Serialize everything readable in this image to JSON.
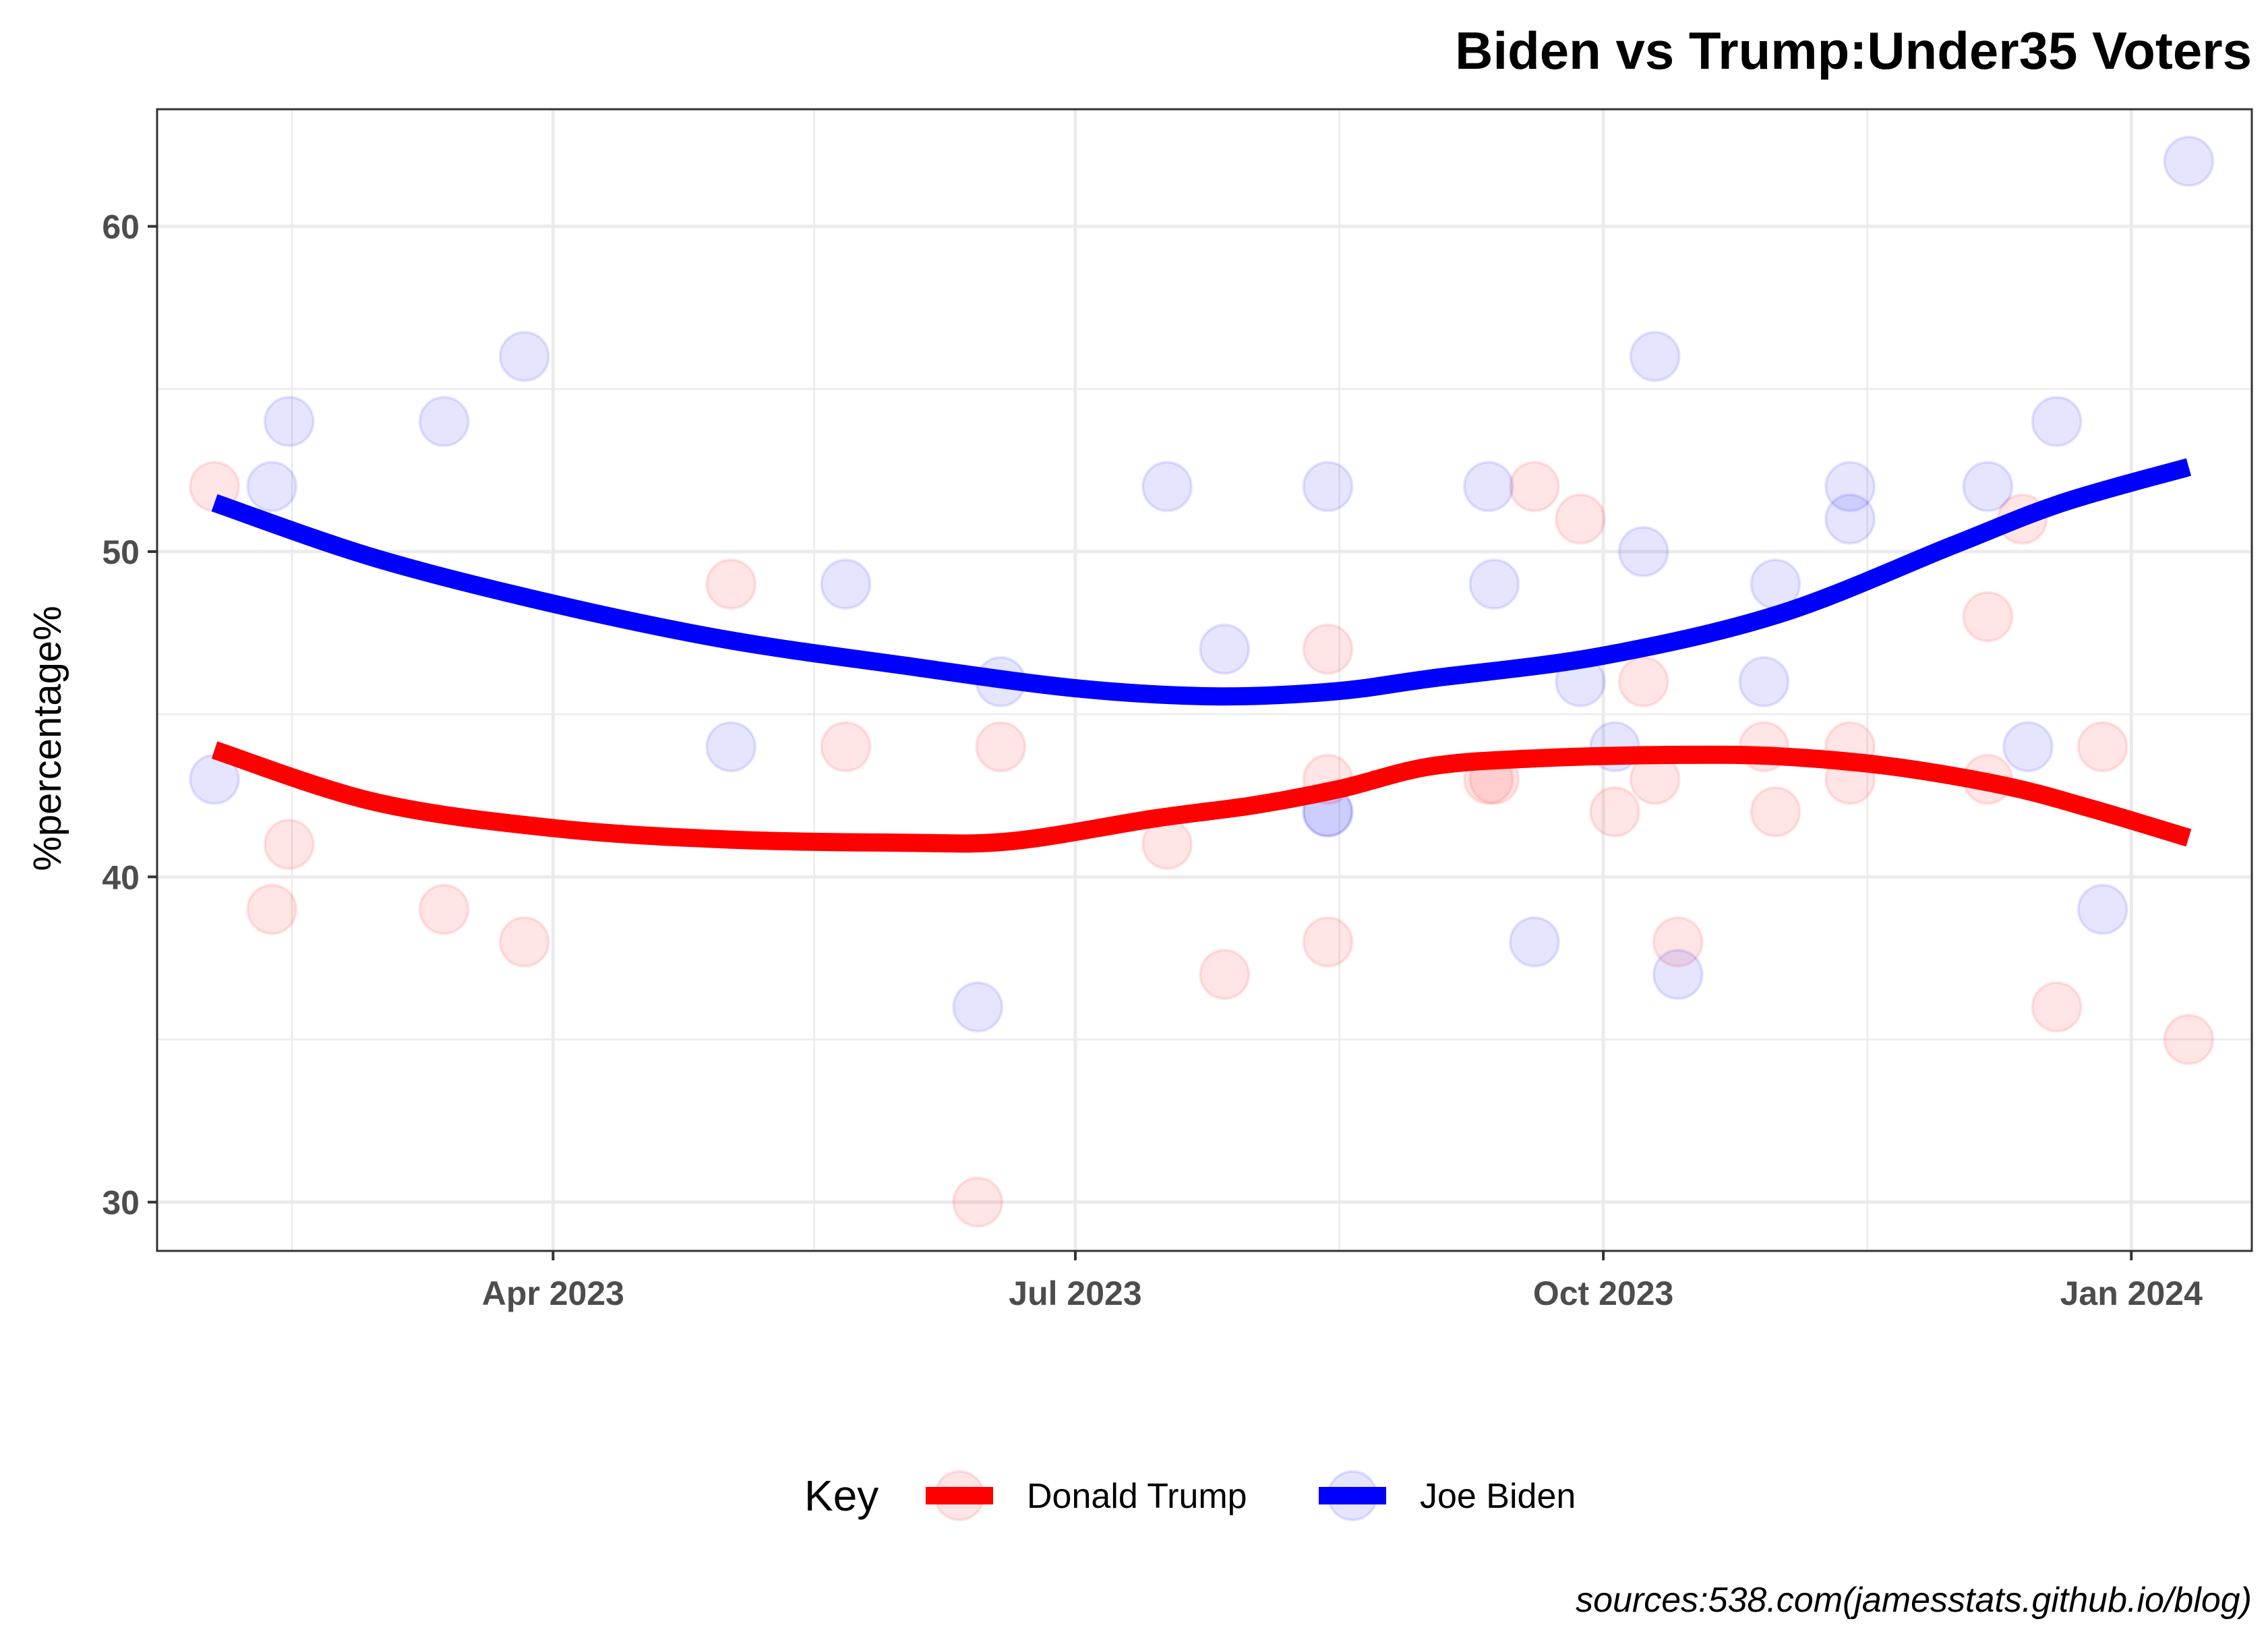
{
  "chart_data": {
    "type": "scatter",
    "title": "Biden vs Trump:Under35 Voters",
    "xlabel": "",
    "ylabel": "%percentage%",
    "caption": "sources:538.com(jamesstats.github.io/blog)",
    "x_range": [
      "2023-01-22",
      "2024-01-22"
    ],
    "ylim": [
      28.5,
      63.6
    ],
    "y_ticks": [
      30,
      40,
      50,
      60
    ],
    "y_tick_labels": [
      "30",
      "40",
      "50",
      "60"
    ],
    "x_ticks": [
      "2023-04-01",
      "2023-07-01",
      "2023-10-01",
      "2024-01-01"
    ],
    "x_tick_labels": [
      "Apr 2023",
      "Jul 2023",
      "Oct 2023",
      "Jan 2024"
    ],
    "grid": true,
    "legend": {
      "title": "Key",
      "position": "bottom",
      "entries": [
        "Donald Trump",
        "Joe Biden"
      ]
    },
    "series": [
      {
        "name": "Donald Trump",
        "color": "#ff0000",
        "points": [
          {
            "x": "2023-02-01",
            "y": 52
          },
          {
            "x": "2023-02-11",
            "y": 39
          },
          {
            "x": "2023-02-14",
            "y": 41
          },
          {
            "x": "2023-03-13",
            "y": 39
          },
          {
            "x": "2023-03-27",
            "y": 38
          },
          {
            "x": "2023-05-02",
            "y": 49
          },
          {
            "x": "2023-05-22",
            "y": 44
          },
          {
            "x": "2023-06-14",
            "y": 30
          },
          {
            "x": "2023-06-18",
            "y": 44
          },
          {
            "x": "2023-07-17",
            "y": 41
          },
          {
            "x": "2023-07-27",
            "y": 37
          },
          {
            "x": "2023-08-14",
            "y": 47
          },
          {
            "x": "2023-08-14",
            "y": 43
          },
          {
            "x": "2023-08-14",
            "y": 38
          },
          {
            "x": "2023-09-11",
            "y": 43
          },
          {
            "x": "2023-09-12",
            "y": 43
          },
          {
            "x": "2023-09-19",
            "y": 52
          },
          {
            "x": "2023-09-27",
            "y": 51
          },
          {
            "x": "2023-10-03",
            "y": 42
          },
          {
            "x": "2023-10-08",
            "y": 46
          },
          {
            "x": "2023-10-10",
            "y": 43
          },
          {
            "x": "2023-10-14",
            "y": 38
          },
          {
            "x": "2023-10-29",
            "y": 44
          },
          {
            "x": "2023-10-31",
            "y": 42
          },
          {
            "x": "2023-11-13",
            "y": 44
          },
          {
            "x": "2023-11-13",
            "y": 43
          },
          {
            "x": "2023-12-07",
            "y": 48
          },
          {
            "x": "2023-12-07",
            "y": 43
          },
          {
            "x": "2023-12-13",
            "y": 51
          },
          {
            "x": "2023-12-19",
            "y": 36
          },
          {
            "x": "2023-12-27",
            "y": 44
          },
          {
            "x": "2024-01-11",
            "y": 35
          }
        ],
        "trend": [
          {
            "x": "2023-02-01",
            "y": 43.9
          },
          {
            "x": "2023-03-01",
            "y": 42.3
          },
          {
            "x": "2023-04-01",
            "y": 41.5
          },
          {
            "x": "2023-05-01",
            "y": 41.15
          },
          {
            "x": "2023-06-01",
            "y": 41.05
          },
          {
            "x": "2023-06-20",
            "y": 41.1
          },
          {
            "x": "2023-07-15",
            "y": 41.8
          },
          {
            "x": "2023-08-01",
            "y": 42.2
          },
          {
            "x": "2023-08-16",
            "y": 42.7
          },
          {
            "x": "2023-09-01",
            "y": 43.4
          },
          {
            "x": "2023-09-20",
            "y": 43.65
          },
          {
            "x": "2023-10-15",
            "y": 43.75
          },
          {
            "x": "2023-11-01",
            "y": 43.7
          },
          {
            "x": "2023-11-20",
            "y": 43.4
          },
          {
            "x": "2023-12-10",
            "y": 42.8
          },
          {
            "x": "2023-12-25",
            "y": 42.1
          },
          {
            "x": "2024-01-11",
            "y": 41.2
          }
        ]
      },
      {
        "name": "Joe Biden",
        "color": "#0000ff",
        "points": [
          {
            "x": "2023-02-01",
            "y": 43
          },
          {
            "x": "2023-02-11",
            "y": 52
          },
          {
            "x": "2023-02-14",
            "y": 54
          },
          {
            "x": "2023-03-13",
            "y": 54
          },
          {
            "x": "2023-03-27",
            "y": 56
          },
          {
            "x": "2023-05-02",
            "y": 44
          },
          {
            "x": "2023-05-22",
            "y": 49
          },
          {
            "x": "2023-06-14",
            "y": 36
          },
          {
            "x": "2023-06-18",
            "y": 46
          },
          {
            "x": "2023-07-17",
            "y": 52
          },
          {
            "x": "2023-07-27",
            "y": 47
          },
          {
            "x": "2023-08-14",
            "y": 52
          },
          {
            "x": "2023-08-14",
            "y": 42
          },
          {
            "x": "2023-08-14",
            "y": 42
          },
          {
            "x": "2023-09-11",
            "y": 52
          },
          {
            "x": "2023-09-12",
            "y": 49
          },
          {
            "x": "2023-09-19",
            "y": 38
          },
          {
            "x": "2023-09-27",
            "y": 46
          },
          {
            "x": "2023-10-03",
            "y": 44
          },
          {
            "x": "2023-10-08",
            "y": 50
          },
          {
            "x": "2023-10-10",
            "y": 56
          },
          {
            "x": "2023-10-14",
            "y": 37
          },
          {
            "x": "2023-10-29",
            "y": 46
          },
          {
            "x": "2023-10-31",
            "y": 49
          },
          {
            "x": "2023-11-13",
            "y": 52
          },
          {
            "x": "2023-11-13",
            "y": 51
          },
          {
            "x": "2023-12-07",
            "y": 52
          },
          {
            "x": "2023-12-14",
            "y": 44
          },
          {
            "x": "2023-12-19",
            "y": 54
          },
          {
            "x": "2023-12-27",
            "y": 39
          },
          {
            "x": "2024-01-11",
            "y": 62
          }
        ],
        "trend": [
          {
            "x": "2023-02-01",
            "y": 51.5
          },
          {
            "x": "2023-03-01",
            "y": 49.8
          },
          {
            "x": "2023-04-01",
            "y": 48.4
          },
          {
            "x": "2023-05-01",
            "y": 47.3
          },
          {
            "x": "2023-06-01",
            "y": 46.5
          },
          {
            "x": "2023-07-01",
            "y": 45.8
          },
          {
            "x": "2023-07-25",
            "y": 45.55
          },
          {
            "x": "2023-08-15",
            "y": 45.7
          },
          {
            "x": "2023-09-01",
            "y": 46.1
          },
          {
            "x": "2023-10-01",
            "y": 46.8
          },
          {
            "x": "2023-11-01",
            "y": 48.1
          },
          {
            "x": "2023-12-01",
            "y": 50.2
          },
          {
            "x": "2023-12-20",
            "y": 51.5
          },
          {
            "x": "2024-01-11",
            "y": 52.6
          }
        ]
      }
    ]
  }
}
